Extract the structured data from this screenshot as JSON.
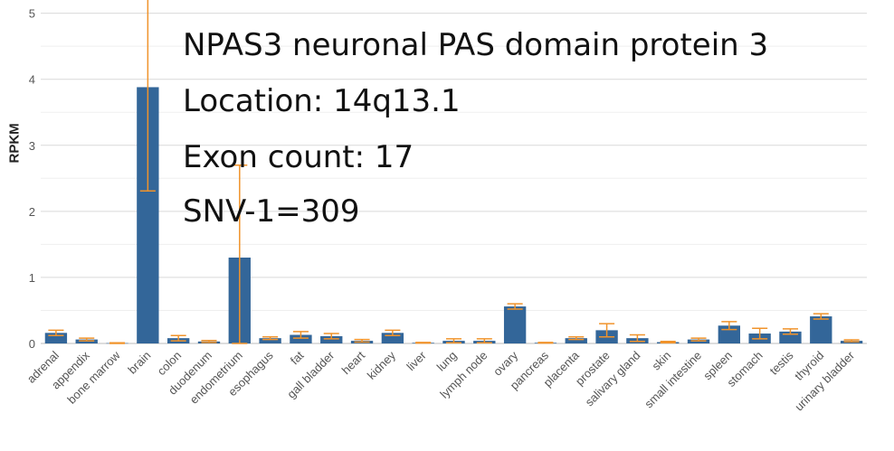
{
  "chart_data": {
    "type": "bar",
    "ylabel": "RPKM",
    "xlabel": "",
    "ylim": [
      0,
      5.2
    ],
    "yticks": [
      0,
      1,
      2,
      3,
      4,
      5
    ],
    "categories": [
      "adrenal",
      "appendix",
      "bone marrow",
      "brain",
      "colon",
      "duodenum",
      "endometrium",
      "esophagus",
      "fat",
      "gall bladder",
      "heart",
      "kidney",
      "liver",
      "lung",
      "lymph node",
      "ovary",
      "pancreas",
      "placenta",
      "prostate",
      "salivary gland",
      "skin",
      "small intestine",
      "spleen",
      "stomach",
      "testis",
      "thyroid",
      "urinary bladder"
    ],
    "values": [
      0.16,
      0.06,
      0.005,
      3.88,
      0.08,
      0.03,
      1.3,
      0.08,
      0.13,
      0.11,
      0.04,
      0.16,
      0.01,
      0.04,
      0.04,
      0.56,
      0.01,
      0.08,
      0.2,
      0.08,
      0.02,
      0.06,
      0.27,
      0.15,
      0.18,
      0.41,
      0.04
    ],
    "error": [
      0.04,
      0.02,
      0.005,
      1.57,
      0.04,
      0.015,
      1.4,
      0.02,
      0.05,
      0.04,
      0.02,
      0.04,
      0.005,
      0.03,
      0.03,
      0.04,
      0.005,
      0.02,
      0.1,
      0.05,
      0.01,
      0.02,
      0.06,
      0.08,
      0.04,
      0.04,
      0.015
    ],
    "bar_color": "#336699",
    "error_color": "#F0932B",
    "grid": true,
    "annotations": [
      "NPAS3 neuronal PAS domain protein 3",
      "Location: 14q13.1",
      "Exon count: 17",
      "SNV-1=309"
    ]
  }
}
